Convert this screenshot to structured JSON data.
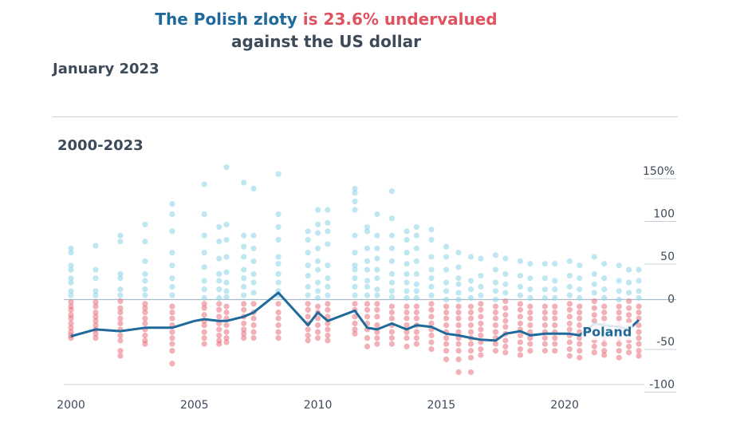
{
  "header": {
    "title_part1": "The Polish zloty",
    "title_part2": " is 23.6% undervalued",
    "subtitle": "against the US dollar",
    "date": "January 2023",
    "period": "2000-2023"
  },
  "colors": {
    "poland_line": "#1f6a9a",
    "overvalued_dots": "#8ad3e6",
    "undervalued_dots": "#e8707c",
    "zero_line": "#a9bccb",
    "grid": "#c7d1db"
  },
  "chart_data": {
    "type": "scatter",
    "title": "The Polish zloty is 23.6% undervalued against the US dollar",
    "xlabel": "",
    "ylabel": "",
    "xlim": [
      2000,
      2023
    ],
    "ylim": [
      -100,
      150
    ],
    "yticks": [
      150,
      100,
      50,
      0,
      -50,
      -100
    ],
    "ytick_labels": [
      "150%",
      "100",
      "50",
      "0",
      "-50",
      "-100"
    ],
    "xticks": [
      2000,
      2005,
      2010,
      2015,
      2020
    ],
    "xtick_labels": [
      "2000",
      "2005",
      "2010",
      "2015",
      "2020"
    ],
    "grid": "horizontal lines at tick levels",
    "scatter_columns": [
      {
        "x": 2000.0,
        "values": [
          60,
          55,
          40,
          35,
          25,
          20,
          10,
          5,
          -3,
          -8,
          -12,
          -18,
          -22,
          -28,
          -33,
          -38,
          -42,
          -45
        ]
      },
      {
        "x": 2001.0,
        "values": [
          63,
          35,
          25,
          10,
          5,
          -3,
          -8,
          -15,
          -20,
          -25,
          -30,
          -35,
          -40,
          -45
        ]
      },
      {
        "x": 2002.0,
        "values": [
          75,
          68,
          30,
          25,
          12,
          5,
          -2,
          -10,
          -15,
          -22,
          -28,
          -35,
          -42,
          -48,
          -60,
          -66
        ]
      },
      {
        "x": 2003.0,
        "values": [
          88,
          68,
          45,
          30,
          22,
          12,
          5,
          -5,
          -10,
          -15,
          -22,
          -28,
          -35,
          -42,
          -48,
          -52
        ]
      },
      {
        "x": 2004.1,
        "values": [
          112,
          100,
          80,
          55,
          40,
          25,
          15,
          5,
          -8,
          -15,
          -22,
          -30,
          -38,
          -45,
          -52,
          -60,
          -75
        ]
      },
      {
        "x": 2005.4,
        "values": [
          135,
          100,
          75,
          55,
          38,
          22,
          12,
          2,
          -5,
          -10,
          -18,
          -25,
          -30,
          -38,
          -45,
          -52
        ]
      },
      {
        "x": 2006.0,
        "values": [
          85,
          68,
          48,
          30,
          22,
          12,
          2,
          -5,
          -12,
          -20,
          -28,
          -35,
          -42,
          -48,
          -52
        ]
      },
      {
        "x": 2006.3,
        "values": [
          155,
          88,
          70,
          50,
          32,
          20,
          10,
          3,
          -8,
          -15,
          -22,
          -30,
          -38,
          -45,
          -50
        ]
      },
      {
        "x": 2007.0,
        "values": [
          137,
          75,
          62,
          50,
          35,
          25,
          15,
          5,
          -5,
          -12,
          -20,
          -28,
          -35,
          -40,
          -45
        ]
      },
      {
        "x": 2007.4,
        "values": [
          130,
          75,
          60,
          45,
          30,
          20,
          8,
          -5,
          -15,
          -22,
          -30,
          -38,
          -45
        ]
      },
      {
        "x": 2008.4,
        "values": [
          147,
          100,
          85,
          70,
          50,
          42,
          30,
          20,
          10,
          5,
          -5,
          -15,
          -22,
          -30,
          -38,
          -45
        ]
      },
      {
        "x": 2009.6,
        "values": [
          80,
          70,
          55,
          40,
          28,
          15,
          5,
          -5,
          -12,
          -20,
          -28,
          -35,
          -42,
          -48
        ]
      },
      {
        "x": 2010.0,
        "values": [
          105,
          88,
          78,
          60,
          45,
          35,
          20,
          10,
          2,
          -8,
          -15,
          -22,
          -30,
          -38,
          -45
        ]
      },
      {
        "x": 2010.4,
        "values": [
          105,
          90,
          80,
          65,
          40,
          25,
          15,
          5,
          -5,
          -12,
          -20,
          -28,
          -35,
          -42,
          -48
        ]
      },
      {
        "x": 2011.5,
        "values": [
          130,
          125,
          115,
          105,
          75,
          55,
          40,
          35,
          25,
          15,
          5,
          -5,
          -12,
          -20,
          -28,
          -35,
          -40
        ]
      },
      {
        "x": 2012.0,
        "values": [
          85,
          80,
          60,
          45,
          35,
          22,
          15,
          5,
          -5,
          -12,
          -20,
          -28,
          -35,
          -45,
          -55
        ]
      },
      {
        "x": 2012.4,
        "values": [
          100,
          75,
          60,
          48,
          35,
          25,
          12,
          5,
          -5,
          -12,
          -20,
          -30,
          -38,
          -45,
          -52
        ]
      },
      {
        "x": 2013.0,
        "values": [
          127,
          95,
          75,
          60,
          45,
          30,
          20,
          10,
          3,
          -8,
          -15,
          -22,
          -30,
          -38,
          -45,
          -52
        ]
      },
      {
        "x": 2013.6,
        "values": [
          80,
          70,
          55,
          42,
          30,
          20,
          10,
          2,
          -8,
          -15,
          -22,
          -30,
          -38,
          -45,
          -55
        ]
      },
      {
        "x": 2014.0,
        "values": [
          85,
          75,
          60,
          45,
          30,
          18,
          10,
          2,
          -8,
          -15,
          -22,
          -30,
          -38,
          -45,
          -52
        ]
      },
      {
        "x": 2014.6,
        "values": [
          82,
          70,
          50,
          35,
          25,
          15,
          5,
          -5,
          -12,
          -20,
          -28,
          -35,
          -42,
          -50,
          -58
        ]
      },
      {
        "x": 2015.2,
        "values": [
          62,
          50,
          35,
          20,
          10,
          0,
          -8,
          -15,
          -22,
          -30,
          -38,
          -45,
          -52,
          -60,
          -70
        ]
      },
      {
        "x": 2015.7,
        "values": [
          55,
          38,
          25,
          18,
          8,
          0,
          -8,
          -15,
          -22,
          -30,
          -38,
          -45,
          -52,
          -60,
          -70,
          -85
        ]
      },
      {
        "x": 2016.2,
        "values": [
          50,
          22,
          12,
          2,
          -8,
          -15,
          -22,
          -30,
          -38,
          -45,
          -52,
          -60,
          -68,
          -85
        ]
      },
      {
        "x": 2016.6,
        "values": [
          48,
          28,
          15,
          5,
          -5,
          -12,
          -20,
          -28,
          -35,
          -42,
          -50,
          -58,
          -65
        ]
      },
      {
        "x": 2017.2,
        "values": [
          52,
          35,
          20,
          10,
          0,
          -8,
          -15,
          -22,
          -30,
          -38,
          -45,
          -52,
          -60
        ]
      },
      {
        "x": 2017.6,
        "values": [
          48,
          30,
          18,
          8,
          -2,
          -10,
          -18,
          -25,
          -32,
          -40,
          -48,
          -55,
          -62
        ]
      },
      {
        "x": 2018.2,
        "values": [
          45,
          28,
          15,
          5,
          -5,
          -12,
          -20,
          -28,
          -35,
          -42,
          -50,
          -58,
          -65
        ]
      },
      {
        "x": 2018.6,
        "values": [
          42,
          25,
          12,
          2,
          -8,
          -15,
          -22,
          -30,
          -38,
          -45,
          -52,
          -60
        ]
      },
      {
        "x": 2019.2,
        "values": [
          42,
          25,
          12,
          2,
          -8,
          -15,
          -22,
          -30,
          -38,
          -45,
          -52,
          -60
        ]
      },
      {
        "x": 2019.6,
        "values": [
          42,
          22,
          12,
          2,
          -8,
          -15,
          -22,
          -30,
          -38,
          -45,
          -52,
          -60
        ]
      },
      {
        "x": 2020.2,
        "values": [
          45,
          28,
          15,
          5,
          -5,
          -12,
          -20,
          -28,
          -35,
          -42,
          -50,
          -58,
          -66
        ]
      },
      {
        "x": 2020.6,
        "values": [
          40,
          25,
          12,
          2,
          -8,
          -15,
          -22,
          -30,
          -38,
          -45,
          -52,
          -60,
          -68
        ]
      },
      {
        "x": 2021.2,
        "values": [
          50,
          30,
          18,
          8,
          -2,
          -10,
          -18,
          -25,
          -32,
          -40,
          -48,
          -55,
          -62
        ]
      },
      {
        "x": 2021.6,
        "values": [
          42,
          25,
          12,
          2,
          -8,
          -15,
          -22,
          -30,
          -38,
          -45,
          -52,
          -60,
          -65
        ]
      },
      {
        "x": 2022.2,
        "values": [
          40,
          22,
          10,
          0,
          -8,
          -15,
          -22,
          -30,
          -38,
          -45,
          -52,
          -60,
          -68
        ]
      },
      {
        "x": 2022.6,
        "values": [
          35,
          20,
          8,
          -2,
          -10,
          -18,
          -25,
          -32,
          -40,
          -48,
          -55,
          -62
        ]
      },
      {
        "x": 2023.0,
        "values": [
          35,
          22,
          10,
          2,
          -8,
          -15,
          -22,
          -30,
          -38,
          -45,
          -52,
          -60,
          -66
        ]
      }
    ],
    "series": [
      {
        "name": "Poland",
        "x": [
          2000,
          2001,
          2002,
          2003,
          2004.1,
          2005,
          2005.4,
          2006,
          2006.3,
          2007,
          2007.4,
          2008.4,
          2009.6,
          2010,
          2010.4,
          2011.5,
          2012,
          2012.4,
          2013,
          2013.6,
          2014,
          2014.6,
          2015.2,
          2015.7,
          2016.2,
          2016.6,
          2017.2,
          2017.6,
          2018.2,
          2018.6,
          2019.2,
          2019.6,
          2020.2,
          2020.6,
          2021.2,
          2021.6,
          2022.2,
          2022.6,
          2023.0
        ],
        "values": [
          -43,
          -35,
          -37,
          -33,
          -33,
          -25,
          -23,
          -25,
          -25,
          -20,
          -15,
          8,
          -30,
          -15,
          -25,
          -13,
          -33,
          -35,
          -28,
          -35,
          -30,
          -32,
          -40,
          -42,
          -45,
          -47,
          -48,
          -40,
          -37,
          -42,
          -40,
          -40,
          -40,
          -42,
          -28,
          -30,
          -32,
          -35,
          -24
        ]
      }
    ]
  }
}
